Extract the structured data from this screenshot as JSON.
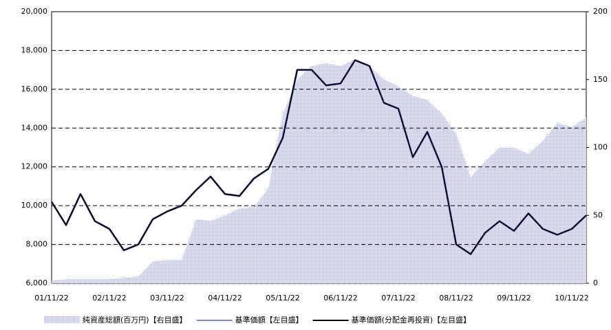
{
  "chart_data": {
    "type": "line",
    "categories": [
      "01/11/22",
      null,
      null,
      null,
      "02/11/22",
      null,
      null,
      null,
      "03/11/22",
      null,
      null,
      null,
      "04/11/22",
      null,
      null,
      null,
      "05/11/22",
      null,
      null,
      null,
      "06/11/22",
      null,
      null,
      null,
      "07/11/22",
      null,
      null,
      null,
      "08/11/22",
      null,
      null,
      null,
      "09/11/22",
      null,
      null,
      null,
      "10/11/22",
      null
    ],
    "series": [
      {
        "name": "純資産総額(百万円)【右目盛】",
        "color": "#c4c4f4",
        "kind": "area",
        "axis": "y2",
        "values": [
          2,
          3,
          3,
          3,
          3,
          4,
          5,
          16,
          17,
          17,
          47,
          46,
          50,
          55,
          56,
          70,
          125,
          150,
          160,
          162,
          160,
          165,
          160,
          150,
          145,
          138,
          135,
          125,
          110,
          78,
          90,
          100,
          100,
          95,
          105,
          118,
          115,
          122
        ]
      },
      {
        "name": "基準価額【左目盛】",
        "color": "#8080f0",
        "values": [
          10200,
          9000,
          10600,
          9200,
          8800,
          7700,
          8000,
          9300,
          9700,
          10000,
          10800,
          11500,
          10600,
          10500,
          11400,
          11900,
          13500,
          17000,
          17000,
          16200,
          16300,
          17500,
          17200,
          15300,
          15000,
          12500,
          13800,
          12000,
          8000,
          7500,
          8600,
          9200,
          8700,
          9600,
          8800,
          8500,
          8800,
          9500
        ]
      },
      {
        "name": "基準価額(分配金再投資)【左目盛】",
        "color": "#000000",
        "values": [
          10200,
          9000,
          10600,
          9200,
          8800,
          7700,
          8000,
          9300,
          9700,
          10000,
          10800,
          11500,
          10600,
          10500,
          11400,
          11900,
          13500,
          17000,
          17000,
          16200,
          16300,
          17500,
          17200,
          15300,
          15000,
          12500,
          13800,
          12000,
          8000,
          7500,
          8600,
          9200,
          8700,
          9600,
          8800,
          8500,
          8800,
          9500
        ]
      }
    ],
    "ylim": [
      6000,
      20000
    ],
    "yticks": [
      {
        "value": 6000,
        "label": "6,000"
      },
      {
        "value": 8000,
        "label": "8,000"
      },
      {
        "value": 10000,
        "label": "10,000"
      },
      {
        "value": 12000,
        "label": "12,000"
      },
      {
        "value": 14000,
        "label": "14,000"
      },
      {
        "value": 16000,
        "label": "16,000"
      },
      {
        "value": 18000,
        "label": "18,000"
      },
      {
        "value": 20000,
        "label": "20,000"
      }
    ],
    "y2lim": [
      0,
      200
    ],
    "y2ticks": [
      0,
      50,
      100,
      150,
      200
    ],
    "grid": true
  }
}
